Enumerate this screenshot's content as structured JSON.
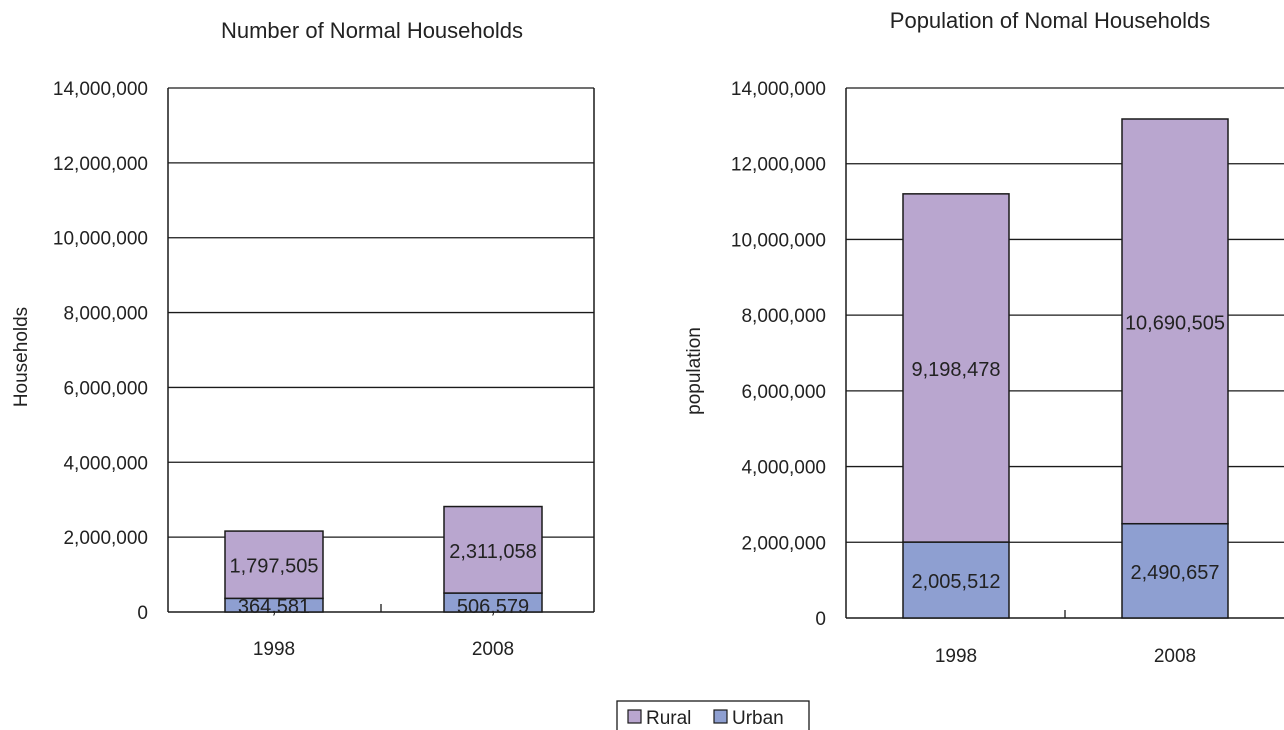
{
  "colors": {
    "rural": "#b9a6cf",
    "urban": "#8e9fd1",
    "stroke": "#1a1a1a",
    "text": "#222222"
  },
  "legend": {
    "items": [
      {
        "key": "rural",
        "label": "Rural"
      },
      {
        "key": "urban",
        "label": "Urban"
      }
    ]
  },
  "chart_data": [
    {
      "type": "bar",
      "stacked": true,
      "title": "Number of Normal Households",
      "ylabel": "Households",
      "xlabel": "",
      "ylim": [
        0,
        14000000
      ],
      "yticks": [
        0,
        2000000,
        4000000,
        6000000,
        8000000,
        10000000,
        12000000,
        14000000
      ],
      "ytick_labels": [
        "0",
        "2,000,000",
        "4,000,000",
        "6,000,000",
        "8,000,000",
        "10,000,000",
        "12,000,000",
        "14,000,000"
      ],
      "grid": true,
      "categories": [
        "1998",
        "2008"
      ],
      "series": [
        {
          "key": "urban",
          "name": "Urban",
          "values": [
            364581,
            506579
          ],
          "labels": [
            "364,581",
            "506,579"
          ]
        },
        {
          "key": "rural",
          "name": "Rural",
          "values": [
            1797505,
            2311058
          ],
          "labels": [
            "1,797,505",
            "2,311,058"
          ]
        }
      ]
    },
    {
      "type": "bar",
      "stacked": true,
      "title": "Population of Nomal Households",
      "ylabel": "population",
      "xlabel": "",
      "ylim": [
        0,
        14000000
      ],
      "yticks": [
        0,
        2000000,
        4000000,
        6000000,
        8000000,
        10000000,
        12000000,
        14000000
      ],
      "ytick_labels": [
        "0",
        "2,000,000",
        "4,000,000",
        "6,000,000",
        "8,000,000",
        "10,000,000",
        "12,000,000",
        "14,000,000"
      ],
      "grid": true,
      "categories": [
        "1998",
        "2008"
      ],
      "series": [
        {
          "key": "urban",
          "name": "Urban",
          "values": [
            2005512,
            2490657
          ],
          "labels": [
            "2,005,512",
            "2,490,657"
          ]
        },
        {
          "key": "rural",
          "name": "Rural",
          "values": [
            9198478,
            10690505
          ],
          "labels": [
            "9,198,478",
            "10,690,505"
          ]
        }
      ]
    }
  ]
}
